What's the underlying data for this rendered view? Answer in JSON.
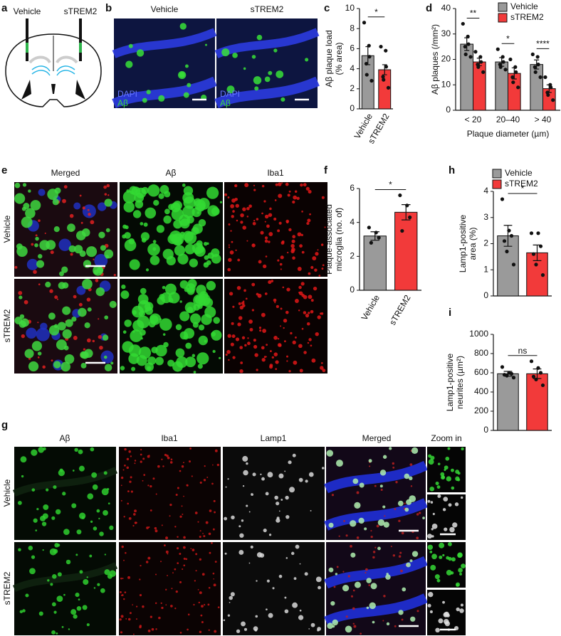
{
  "figure": {
    "panel_letters": [
      "a",
      "b",
      "c",
      "d",
      "e",
      "f",
      "g",
      "h",
      "i"
    ],
    "a": {
      "labels": [
        "Vehicle",
        "sTREM2"
      ]
    },
    "b": {
      "columns": [
        "Vehicle",
        "sTREM2"
      ],
      "channels": [
        "DAPI",
        "Aβ"
      ]
    },
    "e": {
      "columns": [
        "Merged",
        "Aβ",
        "Iba1"
      ],
      "rows": [
        "Vehicle",
        "sTREM2"
      ]
    },
    "g": {
      "columns": [
        "Aβ",
        "Iba1",
        "Lamp1",
        "Merged",
        "Zoom in"
      ],
      "rows": [
        "Vehicle",
        "sTREM2"
      ]
    }
  },
  "chart_data": [
    {
      "type": "bar",
      "ylabel": [
        "Aβ plaque load",
        "(% area)"
      ],
      "categories": [
        "Vehicle",
        "sTREM2"
      ],
      "values": [
        5.3,
        3.9
      ],
      "errors": [
        0.9,
        0.5
      ],
      "colors": [
        "#9a9a9a",
        "#f23a3a"
      ],
      "points": [
        [
          8.6,
          6.3,
          5.2,
          4.5,
          3.4,
          2.8
        ],
        [
          6.2,
          5.8,
          4.2,
          3.2,
          2.9,
          2.1
        ]
      ],
      "ylim": [
        0,
        10
      ],
      "yticks": [
        0,
        2,
        4,
        6,
        8,
        10
      ],
      "significance": "*",
      "legend": false,
      "rotate_labels": true
    },
    {
      "type": "grouped_bar",
      "ylabel": [
        "Aβ plaques (/mm²)"
      ],
      "xlabel": "Plaque diameter (µm)",
      "categories": [
        "< 20",
        "20–40",
        "> 40"
      ],
      "series": [
        {
          "name": "Vehicle",
          "color": "#9a9a9a",
          "values": [
            26,
            19,
            18
          ],
          "errors": [
            2.5,
            1.7,
            1.8
          ],
          "points": [
            [
              34,
              29,
              26,
              25,
              22,
              21
            ],
            [
              24,
              21,
              19,
              18,
              17,
              16
            ],
            [
              22,
              21,
              18,
              17,
              15,
              13
            ]
          ]
        },
        {
          "name": "sTREM2",
          "color": "#f23a3a",
          "values": [
            19,
            14.5,
            8.5
          ],
          "errors": [
            1.5,
            2.2,
            1.5
          ],
          "points": [
            [
              23,
              21,
              19,
              18,
              17,
              15
            ],
            [
              20,
              17,
              15,
              13,
              11,
              9
            ],
            [
              13,
              10,
              9,
              7,
              6,
              4
            ]
          ]
        }
      ],
      "ylim": [
        0,
        40
      ],
      "yticks": [
        0,
        10,
        20,
        30,
        40
      ],
      "significance": [
        "**",
        "*",
        "****"
      ],
      "legend": true
    },
    {
      "type": "bar",
      "ylabel": [
        "Plaque-associated",
        "microglia (no. of)"
      ],
      "categories": [
        "Vehicle",
        "sTREM2"
      ],
      "values": [
        3.2,
        4.6
      ],
      "errors": [
        0.25,
        0.45
      ],
      "colors": [
        "#9a9a9a",
        "#f23a3a"
      ],
      "points": [
        [
          3.7,
          3.4,
          3.1,
          2.8
        ],
        [
          5.6,
          5.0,
          4.3,
          3.5
        ]
      ],
      "ylim": [
        0,
        6
      ],
      "yticks": [
        0,
        2,
        4,
        6
      ],
      "significance": "*",
      "legend": false,
      "rotate_labels": true
    },
    {
      "type": "bar",
      "ylabel": [
        "Lamp1-positive",
        "area (%)"
      ],
      "categories": [
        "Vehicle",
        "sTREM2"
      ],
      "values": [
        2.3,
        1.65
      ],
      "errors": [
        0.4,
        0.3
      ],
      "colors": [
        "#9a9a9a",
        "#f23a3a"
      ],
      "points": [
        [
          3.7,
          2.5,
          2.3,
          2.1,
          1.7,
          1.2
        ],
        [
          2.4,
          2.4,
          1.9,
          1.6,
          1.2,
          0.8
        ]
      ],
      "ylim": [
        0,
        4
      ],
      "yticks": [
        0,
        1,
        2,
        3,
        4
      ],
      "significance": "*",
      "legend": true,
      "rotate_labels": false
    },
    {
      "type": "bar",
      "ylabel": [
        "Lamp1-positive",
        "neurites (µm²)"
      ],
      "values": [
        590,
        590
      ],
      "errors": [
        25,
        50
      ],
      "colors": [
        "#9a9a9a",
        "#f23a3a"
      ],
      "points": [
        [
          660,
          600,
          590,
          580,
          570,
          550
        ],
        [
          720,
          650,
          600,
          560,
          530,
          470
        ]
      ],
      "ylim": [
        0,
        1000
      ],
      "yticks": [
        0,
        200,
        400,
        600,
        800,
        1000
      ],
      "significance": "ns",
      "legend": false,
      "rotate_labels": false
    }
  ]
}
